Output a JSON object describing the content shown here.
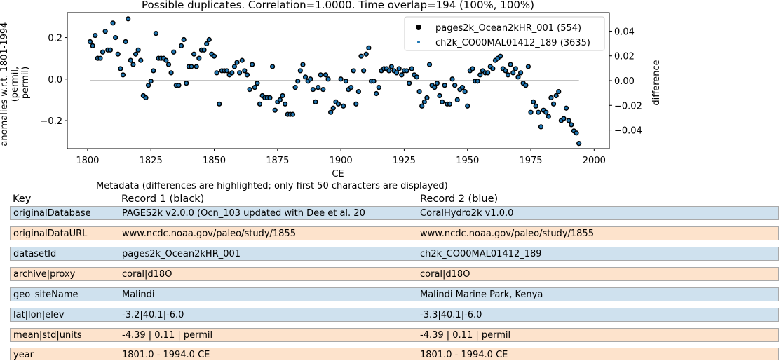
{
  "chart_data": {
    "type": "scatter",
    "title": "Possible duplicates. Correlation=1.0000. Time overlap=194 (100%, 100%)",
    "xlabel": "CE",
    "ylabel_lines": [
      "anomalies w.r.t. 1801-1994",
      "(permil,",
      "permil)"
    ],
    "ylabel_right": "difference",
    "xlim": [
      1792,
      2006
    ],
    "ylim": [
      -0.335,
      0.32
    ],
    "ylim_right": [
      -0.055,
      0.055
    ],
    "xticks": [
      1800,
      1825,
      1850,
      1875,
      1900,
      1925,
      1950,
      1975,
      2000
    ],
    "yticks": [
      -0.2,
      0.0,
      0.2
    ],
    "yticks_right": [
      -0.04,
      -0.02,
      0.0,
      0.02,
      0.04
    ],
    "xtick_labels": [
      "1800",
      "1825",
      "1850",
      "1875",
      "1900",
      "1925",
      "1950",
      "1975",
      "2000"
    ],
    "ytick_labels": [
      "−0.2",
      "0.0",
      "0.2"
    ],
    "ytick_labels_right": [
      "−0.04",
      "−0.02",
      "0.00",
      "0.02",
      "0.04"
    ],
    "legend_position": "top-right",
    "colors": {
      "record1": "#000000",
      "record2": "#1f77b4",
      "difference": "#b0b0b0"
    },
    "series": [
      {
        "name": "pages2k_Ocean2kHR_001 (554)",
        "marker": "black-circle",
        "x": [
          1801,
          1802,
          1803,
          1804,
          1805,
          1806,
          1807,
          1808,
          1809,
          1810,
          1811,
          1812,
          1813,
          1814,
          1815,
          1816,
          1817,
          1818,
          1819,
          1820,
          1821,
          1822,
          1823,
          1824,
          1825,
          1826,
          1827,
          1828,
          1829,
          1830,
          1831,
          1832,
          1833,
          1834,
          1835,
          1836,
          1837,
          1838,
          1839,
          1840,
          1841,
          1842,
          1843,
          1844,
          1845,
          1846,
          1847,
          1848,
          1849,
          1850,
          1851,
          1852,
          1853,
          1854,
          1855,
          1856,
          1857,
          1858,
          1859,
          1860,
          1861,
          1862,
          1863,
          1864,
          1865,
          1866,
          1867,
          1868,
          1869,
          1870,
          1871,
          1872,
          1873,
          1874,
          1875,
          1876,
          1877,
          1878,
          1879,
          1880,
          1881,
          1882,
          1883,
          1884,
          1885,
          1886,
          1887,
          1888,
          1889,
          1890,
          1891,
          1892,
          1893,
          1894,
          1895,
          1896,
          1897,
          1898,
          1899,
          1900,
          1901,
          1902,
          1903,
          1904,
          1905,
          1906,
          1907,
          1908,
          1909,
          1910,
          1911,
          1912,
          1913,
          1914,
          1915,
          1916,
          1917,
          1918,
          1919,
          1920,
          1921,
          1922,
          1923,
          1924,
          1925,
          1926,
          1927,
          1928,
          1929,
          1930,
          1931,
          1932,
          1933,
          1934,
          1935,
          1936,
          1937,
          1938,
          1939,
          1940,
          1941,
          1942,
          1943,
          1944,
          1945,
          1946,
          1947,
          1948,
          1949,
          1950,
          1951,
          1952,
          1953,
          1954,
          1955,
          1956,
          1957,
          1958,
          1959,
          1960,
          1961,
          1962,
          1963,
          1964,
          1965,
          1966,
          1967,
          1968,
          1969,
          1970,
          1971,
          1972,
          1973,
          1974,
          1975,
          1976,
          1977,
          1978,
          1979,
          1980,
          1981,
          1982,
          1983,
          1984,
          1985,
          1986,
          1987,
          1988,
          1989,
          1990,
          1991,
          1992,
          1993,
          1994
        ],
        "y": [
          0.18,
          0.16,
          0.21,
          0.1,
          0.1,
          0.13,
          0.23,
          0.14,
          0.14,
          0.27,
          0.2,
          0.12,
          0.05,
          0.02,
          0.18,
          0.29,
          0.09,
          0.07,
          0.12,
          0.14,
          0.09,
          -0.08,
          -0.09,
          -0.03,
          -0.01,
          0.04,
          0.22,
          0.1,
          0.1,
          0.1,
          0.09,
          0.07,
          0.03,
          0.13,
          -0.03,
          -0.03,
          0.16,
          0.19,
          -0.02,
          0.06,
          0.06,
          0.12,
          0.06,
          0.1,
          0.14,
          0.14,
          0.17,
          0.19,
          0.12,
          0.11,
          0.03,
          -0.12,
          0.04,
          0.04,
          0.04,
          0.02,
          0.03,
          0.06,
          0.08,
          0.03,
          0.09,
          0.04,
          0.02,
          -0.05,
          0.07,
          -0.04,
          -0.02,
          -0.12,
          -0.08,
          -0.09,
          -0.09,
          -0.09,
          0.06,
          -0.15,
          -0.11,
          -0.1,
          -0.08,
          -0.12,
          -0.17,
          -0.17,
          -0.17,
          -0.04,
          -0.01,
          0.04,
          0.07,
          0.01,
          -0.01,
          0.0,
          -0.05,
          -0.11,
          -0.04,
          0.02,
          -0.05,
          0.02,
          0.0,
          -0.16,
          -0.14,
          -0.11,
          -0.12,
          0.0,
          -0.13,
          -0.01,
          -0.05,
          -0.04,
          0.04,
          -0.12,
          -0.06,
          0.11,
          0.04,
          0.12,
          0.15,
          -0.01,
          -0.01,
          -0.07,
          -0.04,
          0.04,
          0.05,
          0.05,
          0.04,
          0.06,
          0.04,
          0.03,
          0.05,
          0.02,
          0.04,
          0.04,
          -0.02,
          0.05,
          0.02,
          0.01,
          -0.06,
          -0.13,
          -0.11,
          -0.09,
          0.07,
          -0.03,
          -0.04,
          -0.02,
          -0.08,
          -0.11,
          -0.03,
          -0.12,
          -0.12,
          0.0,
          -0.03,
          -0.1,
          -0.05,
          -0.04,
          -0.06,
          -0.13,
          0.04,
          0.05,
          -0.01,
          -0.01,
          0.02,
          0.04,
          0.03,
          0.03,
          0.06,
          0.05,
          0.09,
          0.1,
          0.11,
          0.05,
          0.04,
          0.02,
          0.07,
          0.03,
          0.05,
          0.01,
          0.03,
          -0.02,
          -0.03,
          0.06,
          -0.16,
          -0.11,
          -0.13,
          -0.16,
          -0.23,
          -0.15,
          -0.16,
          -0.18,
          -0.09,
          -0.12,
          -0.08,
          -0.06,
          -0.2,
          -0.19,
          -0.14,
          -0.2,
          -0.22,
          -0.25,
          -0.26,
          -0.31
        ]
      },
      {
        "name": "ch2k_CO00MAL01412_189 (3635)",
        "marker": "blue-dot",
        "same_values_as_series_0": true
      }
    ],
    "difference_series": {
      "x_start": 1801,
      "x_end": 1994,
      "value": 0.0
    }
  },
  "metadata": {
    "caption": "Metadata (differences are highlighted; only first 50 characters are displayed)",
    "headers": [
      "Key",
      "Record 1 (black)",
      "Record 2 (blue)"
    ],
    "rows": [
      {
        "key": "originalDatabase",
        "r1": "PAGES2k v2.0.0 (Ocn_103 updated with Dee et al. 20",
        "r2": "CoralHydro2k v1.0.0",
        "color": "blue"
      },
      {
        "key": "originalDataURL",
        "r1": "www.ncdc.noaa.gov/paleo/study/1855",
        "r2": "www.ncdc.noaa.gov/paleo/study/1855",
        "color": "orange"
      },
      {
        "key": "datasetId",
        "r1": "pages2k_Ocean2kHR_001",
        "r2": "ch2k_CO00MAL01412_189",
        "color": "blue"
      },
      {
        "key": "archive|proxy",
        "r1": "coral|d18O",
        "r2": "coral|d18O",
        "color": "orange"
      },
      {
        "key": "geo_siteName",
        "r1": "Malindi",
        "r2": "Malindi Marine Park, Kenya",
        "color": "blue"
      },
      {
        "key": "lat|lon|elev",
        "r1": "-3.2|40.1|-6.0",
        "r2": "-3.3|40.1|-6.0",
        "color": "blue"
      },
      {
        "key": "mean|std|units",
        "r1": "-4.39 | 0.11 | permil",
        "r2": "-4.39 | 0.11 | permil",
        "color": "orange"
      },
      {
        "key": "year",
        "r1": "1801.0 - 1994.0 CE",
        "r2": "1801.0 - 1994.0 CE",
        "color": "orange"
      }
    ]
  }
}
